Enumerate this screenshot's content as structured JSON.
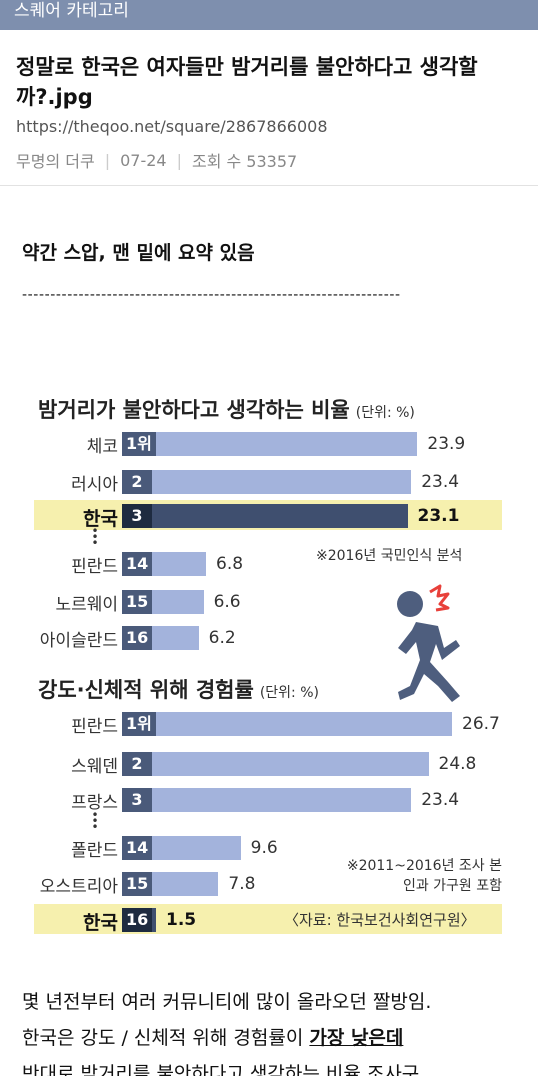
{
  "category": {
    "label": "스퀘어 카테고리"
  },
  "post": {
    "title": "정말로 한국은 여자들만 밤거리를 불안하다고 생각할까?.jpg",
    "url": "https://theqoo.net/square/2867866008",
    "author": "무명의 더쿠",
    "date": "07-24",
    "views": "조회 수 53357"
  },
  "content": {
    "summary_note": "약간 스압, 맨 밑에 요약 있음",
    "divider": "-------------------------------------------------------------------",
    "paragraph1": "몇 년전부터 여러 커뮤니티에 많이 올라오던 짤방임.",
    "paragraph2_pre": "한국은 강도 / 신체적 위해 경험률이 ",
    "paragraph2_strong": "가장 낮은데",
    "paragraph3": "반대로 밤거리를 불안하다고 생각하는 비율 조사구"
  },
  "chart_data": [
    {
      "type": "bar",
      "title": "밤거리가 불안하다고 생각하는 비율",
      "unit": "(단위: %)",
      "categories": [
        "체코",
        "러시아",
        "한국",
        "핀란드",
        "노르웨이",
        "아이슬란드"
      ],
      "ranks": [
        "1위",
        "2",
        "3",
        "14",
        "15",
        "16"
      ],
      "values": [
        23.9,
        23.4,
        23.1,
        6.8,
        6.6,
        6.2
      ],
      "highlight": "한국",
      "note": "※2016년 국민인식 분석",
      "xlim": [
        0,
        26.7
      ]
    },
    {
      "type": "bar",
      "title": "강도·신체적 위해 경험률",
      "unit": "(단위: %)",
      "categories": [
        "핀란드",
        "스웨덴",
        "프랑스",
        "폴란드",
        "오스트리아",
        "한국"
      ],
      "ranks": [
        "1위",
        "2",
        "3",
        "14",
        "15",
        "16"
      ],
      "values": [
        26.7,
        24.8,
        23.4,
        9.6,
        7.8,
        1.5
      ],
      "highlight": "한국",
      "note": "※2011~2016년 조사 본인과 가구원 포함",
      "source": "〈자료: 한국보건사회연구원〉",
      "xlim": [
        0,
        26.7
      ]
    }
  ],
  "colors": {
    "category_bar": "#7e8fae",
    "bar": "#a3b3dc",
    "rank_box": "#4a5a7a",
    "highlight_bg": "#f6f0ae",
    "highlight_bar": "#3f4f6f",
    "runner": "#4e5e7e",
    "alert": "#e8403a"
  },
  "icons": {
    "runner": "running-person-icon"
  }
}
